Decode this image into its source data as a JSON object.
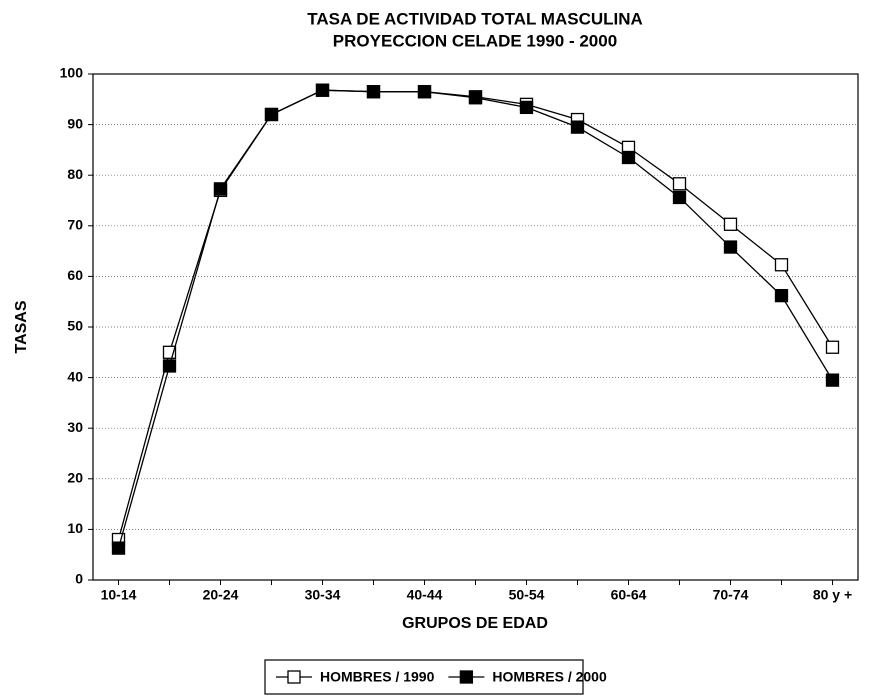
{
  "chart_data": {
    "type": "line",
    "title": "TASA DE ACTIVIDAD TOTAL MASCULINA",
    "subtitle": "PROYECCION CELADE 1990 - 2000",
    "x_label": "GRUPOS DE EDAD",
    "y_label": "TASAS",
    "categories": [
      "10-14",
      null,
      "20-24",
      null,
      "30-34",
      null,
      "40-44",
      null,
      "50-54",
      null,
      "60-64",
      null,
      "70-74",
      null,
      "80 y +"
    ],
    "series": [
      {
        "name": "HOMBRES / 1990",
        "color": "#000000",
        "marker": "open-square",
        "values": [
          8,
          45,
          77,
          92,
          96.8,
          96.5,
          96.5,
          95.5,
          94,
          91,
          85.5,
          78.3,
          70.3,
          62.3,
          46
        ]
      },
      {
        "name": "HOMBRES / 2000",
        "color": "#000000",
        "marker": "filled-square",
        "values": [
          6.3,
          42.3,
          77.3,
          92,
          96.8,
          96.5,
          96.5,
          95.3,
          93.4,
          89.5,
          83.5,
          75.6,
          65.8,
          56.2,
          39.5
        ]
      }
    ],
    "ylim": [
      0,
      100
    ],
    "yticks": [
      0,
      10,
      20,
      30,
      40,
      50,
      60,
      70,
      80,
      90,
      100
    ],
    "grid": true,
    "legend": "bottom"
  }
}
